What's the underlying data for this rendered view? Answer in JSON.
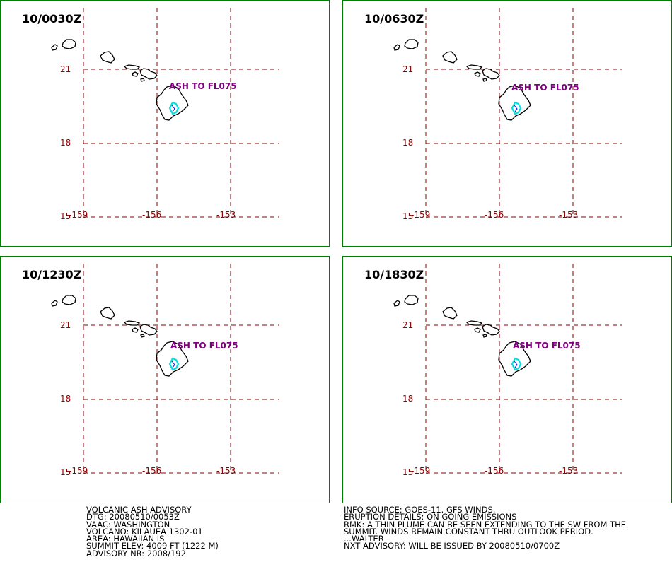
{
  "colors": {
    "panel_border": "#008000",
    "grid_line": "#8b0000",
    "coastline": "#000000",
    "ash_label": "#800080",
    "plume": "#00e0e0",
    "plume_accent": "#0000ff"
  },
  "map": {
    "lat_labels": [
      "21",
      "18",
      "15"
    ],
    "lon_labels": [
      "-159",
      "-156",
      "-153"
    ],
    "ash_label": "ASH TO FL075"
  },
  "panels": [
    {
      "title": "10/0030Z"
    },
    {
      "title": "10/0630Z"
    },
    {
      "title": "10/1230Z"
    },
    {
      "title": "10/1830Z"
    }
  ],
  "advisory_left": [
    "VOLCANIC ASH ADVISORY",
    "DTG: 20080510/0053Z",
    "VAAC: WASHINGTON",
    "VOLCANO: KILAUEA 1302-01",
    "AREA: HAWAIIAN IS",
    "SUMMIT ELEV: 4009 FT (1222 M)",
    "ADVISORY NR: 2008/192"
  ],
  "advisory_right": [
    "INFO SOURCE: GOES-11. GFS WINDS.",
    "ERUPTION DETAILS: ON GOING EMISSIONS",
    "RMK: A THIN PLUME CAN BE SEEN EXTENDING TO THE SW FROM THE",
    "SUMMIT. WINDS REMAIN CONSTANT THRU OUTLOOK PERIOD.",
    "...WALTER",
    "NXT ADVISORY: WILL BE ISSUED BY 20080510/0700Z"
  ]
}
